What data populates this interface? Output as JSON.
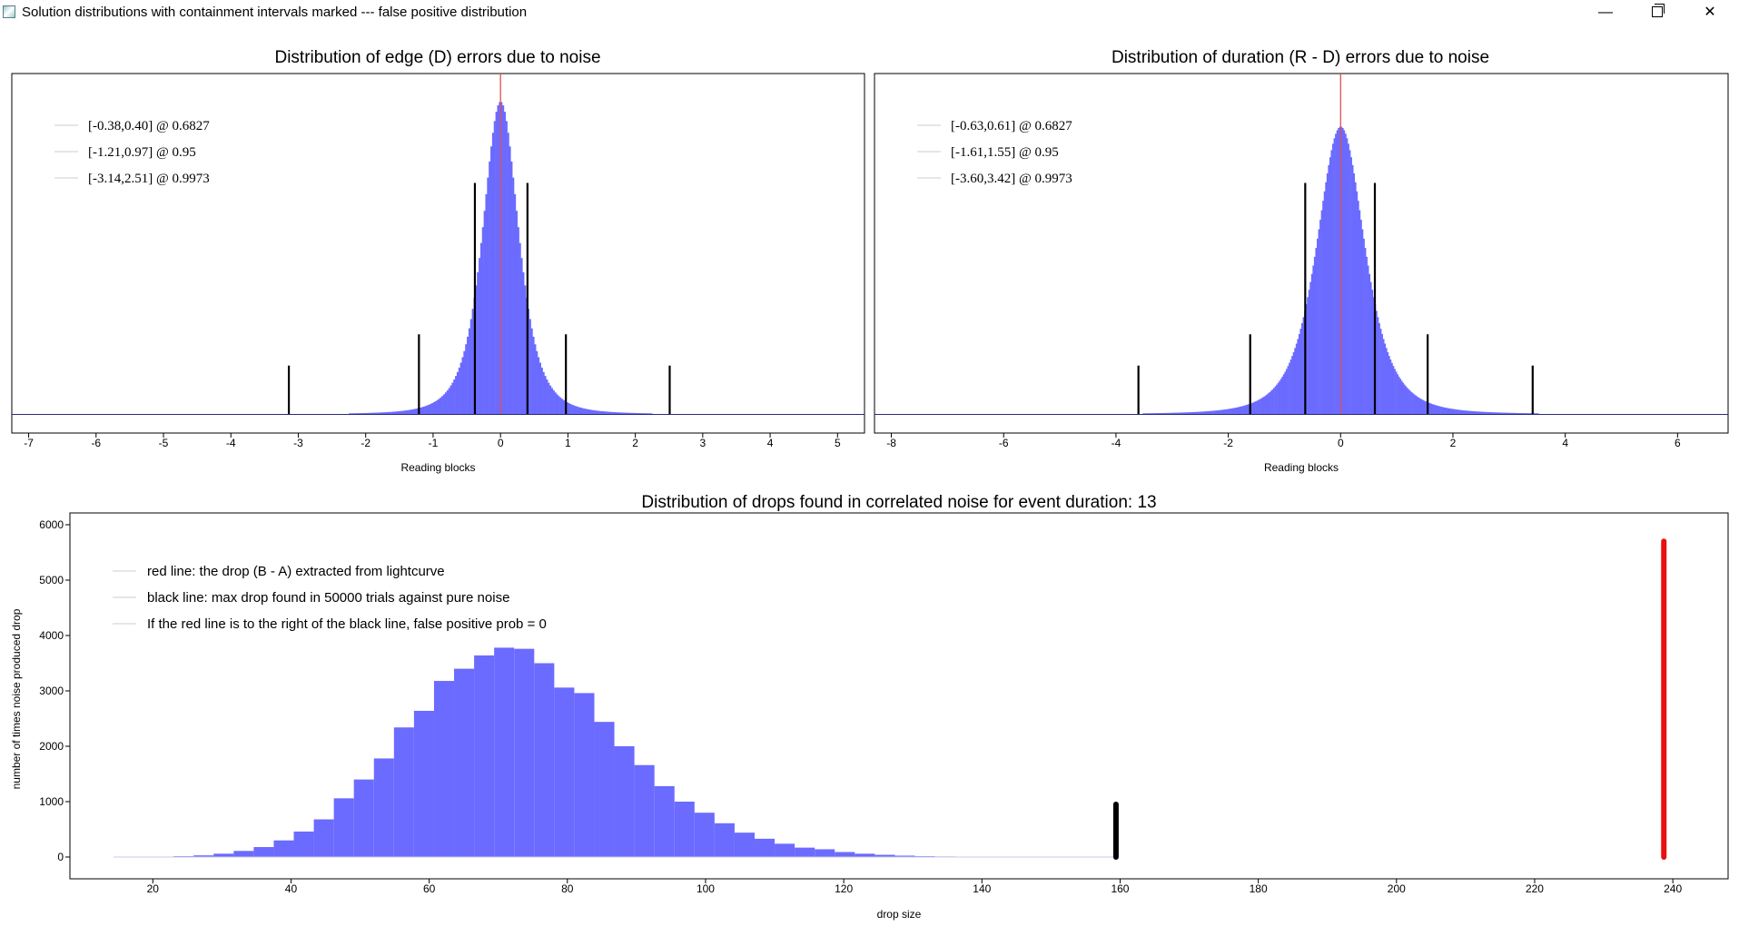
{
  "window": {
    "title": "Solution distributions with containment intervals marked --- false positive distribution",
    "min_glyph": "—",
    "close_glyph": "✕"
  },
  "colors": {
    "histogram": "#6b6bff",
    "marker": "#000000",
    "zero_line": "#e05050",
    "red_drop": "#e81010",
    "frame": "#000000"
  },
  "chart_data": [
    {
      "id": "edge",
      "type": "bar",
      "title": "Distribution of edge (D) errors due to noise",
      "xlabel": "Reading blocks",
      "ylabel": "",
      "xlim": [
        -7.25,
        5.4
      ],
      "ylim": [
        0,
        1.05
      ],
      "xticks": [
        -7,
        -6,
        -5,
        -4,
        -3,
        -2,
        -1,
        0,
        1,
        2,
        3,
        4,
        5
      ],
      "dist": {
        "center": 0.0,
        "scale": 0.28,
        "peak": 1.0
      },
      "zero_line_x": 0,
      "interval_markers": [
        {
          "x": -3.14,
          "height": 0.155
        },
        {
          "x": -1.21,
          "height": 0.255
        },
        {
          "x": -0.38,
          "height": 0.74
        },
        {
          "x": 0.4,
          "height": 0.74
        },
        {
          "x": 0.97,
          "height": 0.255
        },
        {
          "x": 2.51,
          "height": 0.155
        }
      ],
      "legend": [
        "[-0.38,0.40] @ 0.6827",
        "[-1.21,0.97] @ 0.95",
        "[-3.14,2.51] @ 0.9973"
      ]
    },
    {
      "id": "duration",
      "type": "bar",
      "title": "Distribution of duration (R - D) errors due to noise",
      "xlabel": "Reading blocks",
      "ylabel": "",
      "xlim": [
        -8.3,
        6.9
      ],
      "ylim": [
        0,
        1.05
      ],
      "xticks": [
        -8,
        -6,
        -4,
        -2,
        0,
        2,
        4,
        6
      ],
      "dist": {
        "center": 0.0,
        "scale": 0.45,
        "peak": 0.92
      },
      "zero_line_x": 0,
      "interval_markers": [
        {
          "x": -3.6,
          "height": 0.155
        },
        {
          "x": -1.61,
          "height": 0.255
        },
        {
          "x": -0.63,
          "height": 0.74
        },
        {
          "x": 0.61,
          "height": 0.74
        },
        {
          "x": 1.55,
          "height": 0.255
        },
        {
          "x": 3.42,
          "height": 0.155
        }
      ],
      "legend": [
        "[-0.63,0.61] @ 0.6827",
        "[-1.61,1.55] @ 0.95",
        "[-3.60,3.42] @ 0.9973"
      ]
    },
    {
      "id": "drops",
      "type": "bar",
      "title": "Distribution of drops found in correlated noise for event duration: 13",
      "xlabel": "drop size",
      "ylabel": "number of times noise produced drop",
      "xlim": [
        8,
        248
      ],
      "ylim": [
        -400,
        6100
      ],
      "xticks": [
        20,
        40,
        60,
        80,
        100,
        120,
        140,
        160,
        180,
        200,
        220,
        240
      ],
      "yticks": [
        0,
        1000,
        2000,
        3000,
        4000,
        5000,
        6000
      ],
      "bin_width": 2.9,
      "bin_starts": [
        14.3,
        17.2,
        20.1,
        23.0,
        25.9,
        28.8,
        31.7,
        34.6,
        37.5,
        40.4,
        43.3,
        46.2,
        49.1,
        52.0,
        54.9,
        57.8,
        60.7,
        63.6,
        66.5,
        69.4,
        72.3,
        75.2,
        78.1,
        81.0,
        83.9,
        86.8,
        89.7,
        92.6,
        95.5,
        98.4,
        101.3,
        104.2,
        107.1,
        110.0,
        112.9,
        115.8,
        118.7,
        121.6,
        124.5,
        127.4,
        130.3,
        133.2,
        136.1,
        139.0,
        141.9,
        144.8,
        147.7,
        150.6,
        153.5,
        156.4
      ],
      "counts": [
        2,
        4,
        8,
        15,
        30,
        60,
        110,
        180,
        300,
        460,
        680,
        1060,
        1400,
        1780,
        2340,
        2640,
        3180,
        3400,
        3640,
        3780,
        3760,
        3500,
        3060,
        2960,
        2440,
        2000,
        1660,
        1280,
        1000,
        800,
        610,
        440,
        330,
        240,
        170,
        140,
        90,
        60,
        40,
        25,
        15,
        10,
        6,
        4,
        3,
        2,
        1,
        1,
        0,
        0
      ],
      "black_line": {
        "x": 159.4,
        "y_top": 950
      },
      "red_line": {
        "x": 238.7,
        "y_top": 5700
      },
      "legend": [
        "red line: the drop (B - A) extracted from lightcurve",
        "black line: max drop found in 50000 trials against pure noise",
        "If the red line is to the right of the black line, false positive prob = 0"
      ]
    }
  ]
}
